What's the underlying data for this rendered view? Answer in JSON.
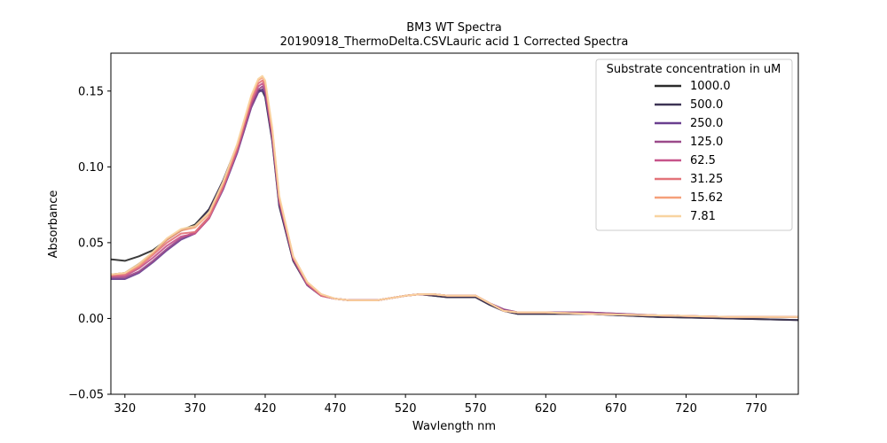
{
  "chart_data": {
    "type": "line",
    "title": "BM3 WT Spectra",
    "subtitle": "20190918_ThermoDelta.CSVLauric acid 1 Corrected Spectra",
    "xlabel": "Wavlength nm",
    "ylabel": "Absorbance",
    "xlim": [
      310,
      800
    ],
    "ylim": [
      -0.05,
      0.175
    ],
    "xticks": [
      320,
      370,
      420,
      470,
      520,
      570,
      620,
      670,
      720,
      770
    ],
    "yticks": [
      -0.05,
      0.0,
      0.05,
      0.1,
      0.15
    ],
    "ytick_labels": [
      "−0.05",
      "0.00",
      "0.05",
      "0.10",
      "0.15"
    ],
    "grid": false,
    "legend": {
      "title": "Substrate concentration in uM",
      "placement": "top-right"
    },
    "x": [
      310,
      320,
      330,
      340,
      350,
      360,
      370,
      380,
      390,
      400,
      405,
      410,
      415,
      418,
      420,
      425,
      430,
      440,
      450,
      460,
      470,
      480,
      500,
      520,
      530,
      540,
      550,
      560,
      570,
      580,
      590,
      600,
      620,
      650,
      700,
      750,
      800
    ],
    "series": [
      {
        "name": "1000.0",
        "color": "#2b2b2b",
        "values": [
          0.039,
          0.038,
          0.041,
          0.045,
          0.052,
          0.058,
          0.062,
          0.072,
          0.09,
          0.112,
          0.126,
          0.14,
          0.15,
          0.151,
          0.147,
          0.118,
          0.075,
          0.038,
          0.022,
          0.015,
          0.013,
          0.012,
          0.012,
          0.015,
          0.016,
          0.015,
          0.014,
          0.014,
          0.014,
          0.009,
          0.005,
          0.003,
          0.003,
          0.003,
          0.001,
          0.0,
          -0.001
        ]
      },
      {
        "name": "500.0",
        "color": "#3d3454",
        "values": [
          0.029,
          0.03,
          0.036,
          0.043,
          0.052,
          0.058,
          0.061,
          0.072,
          0.091,
          0.114,
          0.128,
          0.141,
          0.15,
          0.15,
          0.146,
          0.117,
          0.074,
          0.038,
          0.022,
          0.015,
          0.013,
          0.012,
          0.012,
          0.015,
          0.016,
          0.015,
          0.014,
          0.014,
          0.014,
          0.009,
          0.005,
          0.003,
          0.003,
          0.003,
          0.001,
          0.0,
          -0.001
        ]
      },
      {
        "name": "250.0",
        "color": "#6a3f8f",
        "values": [
          0.026,
          0.026,
          0.03,
          0.037,
          0.045,
          0.052,
          0.056,
          0.066,
          0.085,
          0.109,
          0.124,
          0.139,
          0.149,
          0.151,
          0.148,
          0.119,
          0.076,
          0.039,
          0.022,
          0.015,
          0.013,
          0.012,
          0.012,
          0.015,
          0.016,
          0.016,
          0.015,
          0.015,
          0.015,
          0.01,
          0.006,
          0.004,
          0.004,
          0.004,
          0.002,
          0.001,
          0.001
        ]
      },
      {
        "name": "125.0",
        "color": "#9b4a8a",
        "values": [
          0.027,
          0.027,
          0.031,
          0.038,
          0.046,
          0.053,
          0.057,
          0.067,
          0.086,
          0.11,
          0.125,
          0.14,
          0.151,
          0.153,
          0.15,
          0.12,
          0.077,
          0.039,
          0.022,
          0.015,
          0.013,
          0.012,
          0.012,
          0.015,
          0.016,
          0.016,
          0.015,
          0.015,
          0.015,
          0.01,
          0.006,
          0.004,
          0.004,
          0.004,
          0.002,
          0.001,
          0.001
        ]
      },
      {
        "name": "62.5",
        "color": "#c7548a",
        "values": [
          0.028,
          0.028,
          0.033,
          0.04,
          0.048,
          0.054,
          0.056,
          0.066,
          0.086,
          0.111,
          0.127,
          0.142,
          0.153,
          0.155,
          0.152,
          0.122,
          0.078,
          0.04,
          0.023,
          0.015,
          0.013,
          0.012,
          0.012,
          0.015,
          0.016,
          0.016,
          0.015,
          0.015,
          0.015,
          0.01,
          0.005,
          0.004,
          0.004,
          0.003,
          0.002,
          0.001,
          0.001
        ]
      },
      {
        "name": "31.25",
        "color": "#e3737a",
        "values": [
          0.028,
          0.029,
          0.034,
          0.042,
          0.05,
          0.056,
          0.057,
          0.067,
          0.087,
          0.112,
          0.128,
          0.144,
          0.155,
          0.157,
          0.154,
          0.123,
          0.079,
          0.04,
          0.023,
          0.015,
          0.013,
          0.012,
          0.012,
          0.015,
          0.016,
          0.016,
          0.015,
          0.015,
          0.015,
          0.01,
          0.005,
          0.004,
          0.004,
          0.003,
          0.002,
          0.001,
          0.001
        ]
      },
      {
        "name": "15.62",
        "color": "#f5a07a",
        "values": [
          0.029,
          0.03,
          0.035,
          0.043,
          0.052,
          0.058,
          0.06,
          0.069,
          0.089,
          0.114,
          0.13,
          0.146,
          0.157,
          0.159,
          0.156,
          0.125,
          0.08,
          0.041,
          0.024,
          0.016,
          0.013,
          0.012,
          0.012,
          0.015,
          0.016,
          0.016,
          0.015,
          0.015,
          0.015,
          0.01,
          0.005,
          0.004,
          0.004,
          0.003,
          0.002,
          0.001,
          0.001
        ]
      },
      {
        "name": "7.81",
        "color": "#f8d4a0",
        "values": [
          0.029,
          0.03,
          0.036,
          0.044,
          0.053,
          0.059,
          0.061,
          0.07,
          0.09,
          0.115,
          0.131,
          0.147,
          0.158,
          0.16,
          0.157,
          0.126,
          0.081,
          0.041,
          0.024,
          0.016,
          0.013,
          0.012,
          0.012,
          0.015,
          0.016,
          0.016,
          0.015,
          0.015,
          0.015,
          0.01,
          0.005,
          0.004,
          0.004,
          0.003,
          0.002,
          0.001,
          0.001
        ]
      }
    ]
  }
}
